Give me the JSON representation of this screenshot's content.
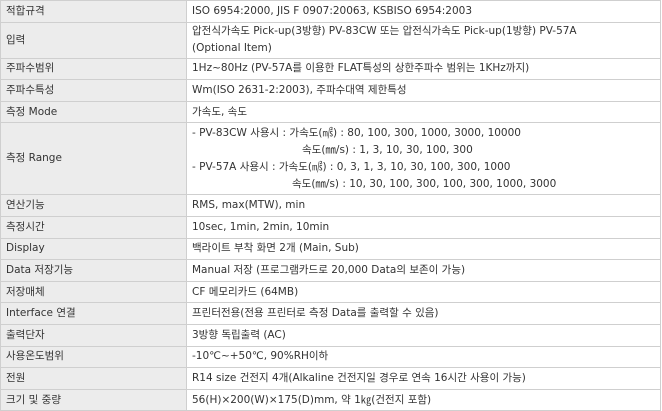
{
  "table": {
    "rows": [
      {
        "label": "적합규격",
        "lines": [
          "ISO 6954:2000, JIS F 0907:20063, KSBISO 6954:2003"
        ]
      },
      {
        "label": "입력",
        "lines": [
          "압전식가속도 Pick-up(3방향) PV-83CW 또는 압전식가속도 Pick-up(1방향) PV-57A",
          "(Optional Item)"
        ]
      },
      {
        "label": "주파수범위",
        "lines": [
          "1Hz~80Hz (PV-57A를 이용한 FLAT특성의 상한주파수 범위는 1KHz까지)"
        ]
      },
      {
        "label": "주파수특성",
        "lines": [
          "Wm(ISO 2631-2:2003), 주파수대역 제한특성"
        ]
      },
      {
        "label": "측정 Mode",
        "lines": [
          "가속도, 속도"
        ]
      },
      {
        "label": "측정 Range",
        "lines": [
          "- PV-83CW 사용시 : 가속도(㎨) : 80, 100, 300, 1000, 3000, 10000",
          "속도(㎜/s) : 1, 3, 10, 30, 100, 300",
          "- PV-57A 사용시 : 가속도(㎨) : 0, 3, 1, 3, 10, 30, 100, 300, 1000",
          "속도(㎜/s) : 10, 30, 100, 300, 100, 300, 1000, 3000"
        ]
      },
      {
        "label": "연산기능",
        "lines": [
          "RMS, max(MTW), min"
        ]
      },
      {
        "label": "측정시간",
        "lines": [
          "10sec, 1min, 2min, 10min"
        ]
      },
      {
        "label": "Display",
        "lines": [
          "백라이트 부착 화면 2개 (Main, Sub)"
        ]
      },
      {
        "label": "Data 저장기능",
        "lines": [
          "Manual 저장 (프로그램카드로 20,000 Data의 보존이 가능)"
        ]
      },
      {
        "label": "저장매체",
        "lines": [
          "CF 메모리카드 (64MB)"
        ]
      },
      {
        "label": "Interface 연결",
        "lines": [
          "프린터전용(전용 프린터로 측정 Data를 출력할 수 있음)"
        ]
      },
      {
        "label": "출력단자",
        "lines": [
          "3방향 독립출력 (AC)"
        ]
      },
      {
        "label": "사용온도범위",
        "lines": [
          "-10℃~+50℃, 90%RH이하"
        ]
      },
      {
        "label": "전원",
        "lines": [
          "R14 size 건전지 4개(Alkaline 건전지일 경우로 연속 16시간 사용이 가능)"
        ]
      },
      {
        "label": "크기 및 중량",
        "lines": [
          "56(H)×200(W)×175(D)mm, 약 1㎏(건전지 포함)"
        ]
      }
    ]
  }
}
